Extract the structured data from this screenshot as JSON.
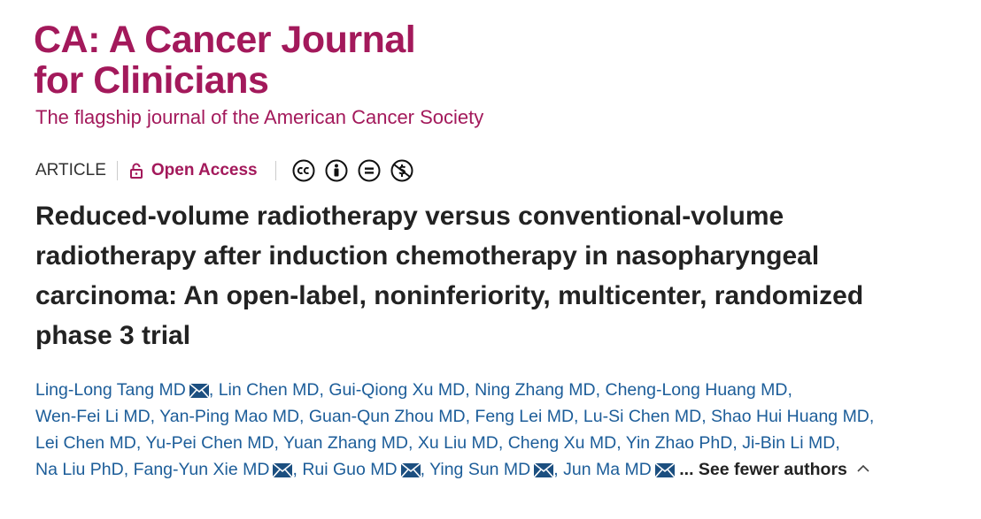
{
  "header": {
    "journal_line1": "CA: A Cancer Journal",
    "journal_line2": "for Clinicians",
    "tagline": "The flagship journal of the American Cancer Society"
  },
  "meta": {
    "article_type": "ARTICLE",
    "access": "Open Access"
  },
  "article": {
    "title": "Reduced-volume radiotherapy versus conventional-volume radiotherapy after induction chemotherapy in nasopharyngeal carcinoma: An open-label, noninferiority, multicenter, randomized phase 3 trial",
    "separator": ",",
    "authors": [
      {
        "name": "Ling-Long Tang MD",
        "email": true
      },
      {
        "name": "Lin Chen MD",
        "email": false
      },
      {
        "name": "Gui-Qiong Xu MD",
        "email": false
      },
      {
        "name": "Ning Zhang MD",
        "email": false
      },
      {
        "name": "Cheng-Long Huang MD",
        "email": false
      },
      {
        "name": "Wen-Fei Li MD",
        "email": false
      },
      {
        "name": "Yan-Ping Mao MD",
        "email": false
      },
      {
        "name": "Guan-Qun Zhou MD",
        "email": false
      },
      {
        "name": "Feng Lei MD",
        "email": false
      },
      {
        "name": "Lu-Si Chen MD",
        "email": false
      },
      {
        "name": "Shao Hui Huang MD",
        "email": false
      },
      {
        "name": "Lei Chen MD",
        "email": false
      },
      {
        "name": "Yu-Pei Chen MD",
        "email": false
      },
      {
        "name": "Yuan Zhang MD",
        "email": false
      },
      {
        "name": "Xu Liu MD",
        "email": false
      },
      {
        "name": "Cheng Xu MD",
        "email": false
      },
      {
        "name": "Yin Zhao PhD",
        "email": false
      },
      {
        "name": "Ji-Bin Li MD",
        "email": false
      },
      {
        "name": "Na Liu PhD",
        "email": false
      },
      {
        "name": "Fang-Yun Xie MD",
        "email": true
      },
      {
        "name": "Rui Guo MD",
        "email": true
      },
      {
        "name": "Ying Sun MD",
        "email": true
      },
      {
        "name": "Jun Ma MD",
        "email": true
      }
    ],
    "toggle": "... See fewer authors"
  }
}
